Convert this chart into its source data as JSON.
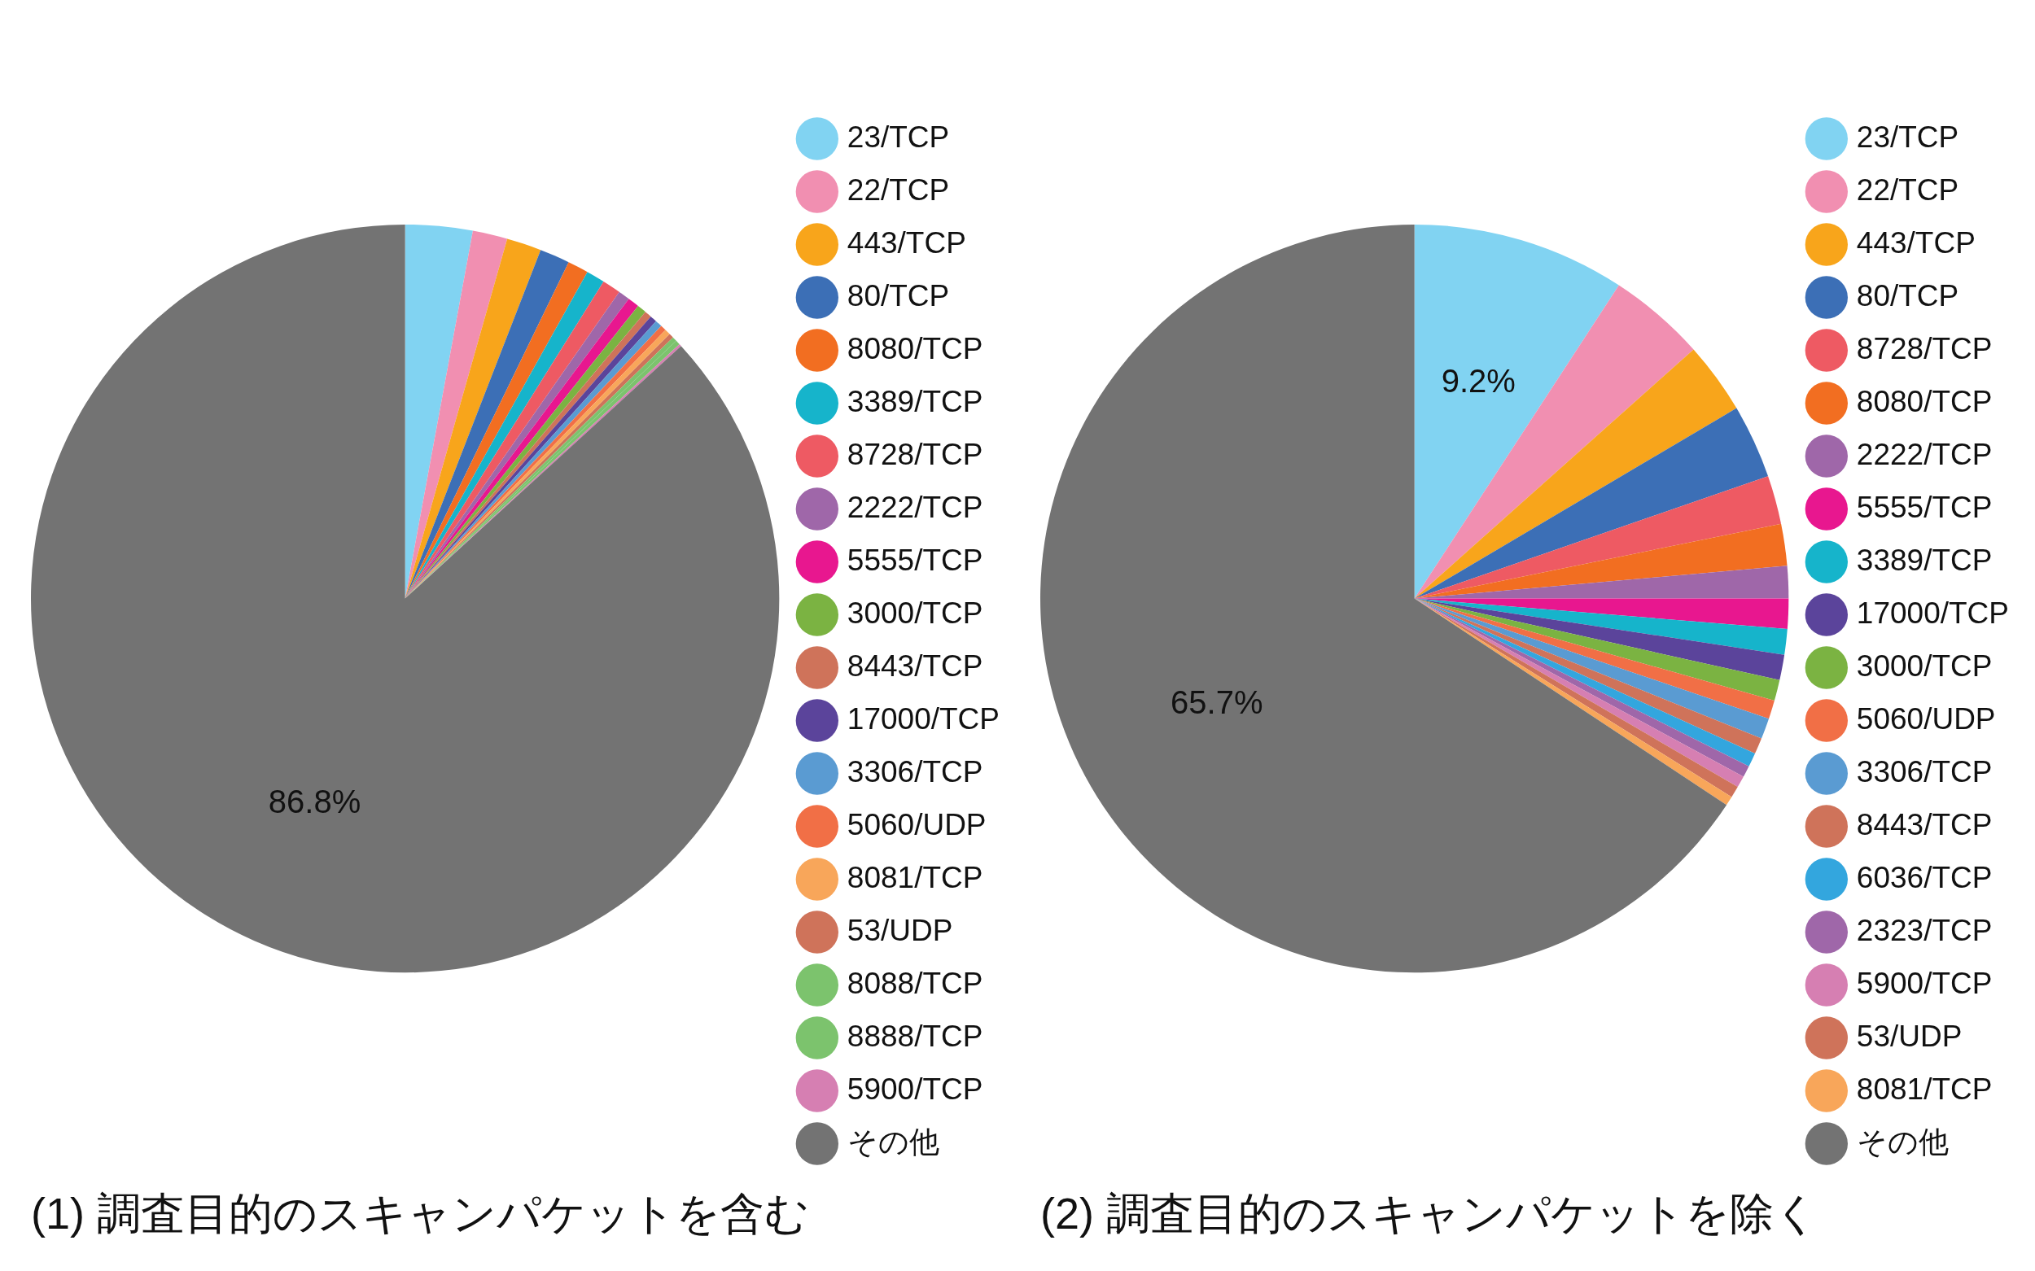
{
  "chart_data": [
    {
      "type": "pie",
      "title": "(1) 調査目的のスキャンパケットを含む",
      "legend": "right",
      "categories": [
        "23/TCP",
        "22/TCP",
        "443/TCP",
        "80/TCP",
        "8080/TCP",
        "3389/TCP",
        "8728/TCP",
        "2222/TCP",
        "5555/TCP",
        "3000/TCP",
        "8443/TCP",
        "17000/TCP",
        "3306/TCP",
        "5060/UDP",
        "8081/TCP",
        "53/UDP",
        "8088/TCP",
        "8888/TCP",
        "5900/TCP",
        "その他"
      ],
      "values": [
        2.9,
        1.5,
        1.5,
        1.3,
        0.9,
        0.8,
        0.8,
        0.5,
        0.5,
        0.4,
        0.3,
        0.3,
        0.3,
        0.25,
        0.25,
        0.2,
        0.2,
        0.2,
        0.1,
        86.8
      ],
      "colors": [
        "#81d3f2",
        "#f18fb1",
        "#f8a51b",
        "#3c6fb6",
        "#f26e21",
        "#16b4cb",
        "#ee5a63",
        "#9f67a9",
        "#e8178f",
        "#7bb342",
        "#cf735a",
        "#5b449b",
        "#5a9bd2",
        "#f16f46",
        "#f8a65a",
        "#cf735a",
        "#7cc36d",
        "#7cc36d",
        "#d67fb2",
        "#737373"
      ],
      "value_labels": [
        null,
        null,
        null,
        null,
        null,
        null,
        null,
        null,
        null,
        null,
        null,
        null,
        null,
        null,
        null,
        null,
        null,
        null,
        null,
        "86.8%"
      ]
    },
    {
      "type": "pie",
      "title": "(2) 調査目的のスキャンパケットを除く",
      "legend": "right",
      "categories": [
        "23/TCP",
        "22/TCP",
        "443/TCP",
        "80/TCP",
        "8728/TCP",
        "8080/TCP",
        "2222/TCP",
        "5555/TCP",
        "3389/TCP",
        "17000/TCP",
        "3000/TCP",
        "5060/UDP",
        "3306/TCP",
        "8443/TCP",
        "6036/TCP",
        "2323/TCP",
        "5900/TCP",
        "53/UDP",
        "8081/TCP",
        "その他"
      ],
      "values": [
        9.2,
        4.2,
        3.1,
        3.2,
        2.1,
        1.8,
        1.4,
        1.3,
        1.1,
        1.1,
        0.9,
        0.8,
        0.9,
        0.7,
        0.6,
        0.5,
        0.5,
        0.5,
        0.4,
        65.7
      ],
      "colors": [
        "#81d3f2",
        "#f18fb1",
        "#f8a51b",
        "#3c6fb6",
        "#ee5a63",
        "#f26e21",
        "#9f67a9",
        "#e8178f",
        "#16b4cb",
        "#5b449b",
        "#7bb342",
        "#f16f46",
        "#5a9bd2",
        "#cf735a",
        "#33a6de",
        "#9f67a9",
        "#d67fb2",
        "#cf735a",
        "#f8a65a",
        "#737373"
      ],
      "value_labels": [
        "9.2%",
        null,
        null,
        null,
        null,
        null,
        null,
        null,
        null,
        null,
        null,
        null,
        null,
        null,
        null,
        null,
        null,
        null,
        null,
        "65.7%"
      ]
    }
  ]
}
